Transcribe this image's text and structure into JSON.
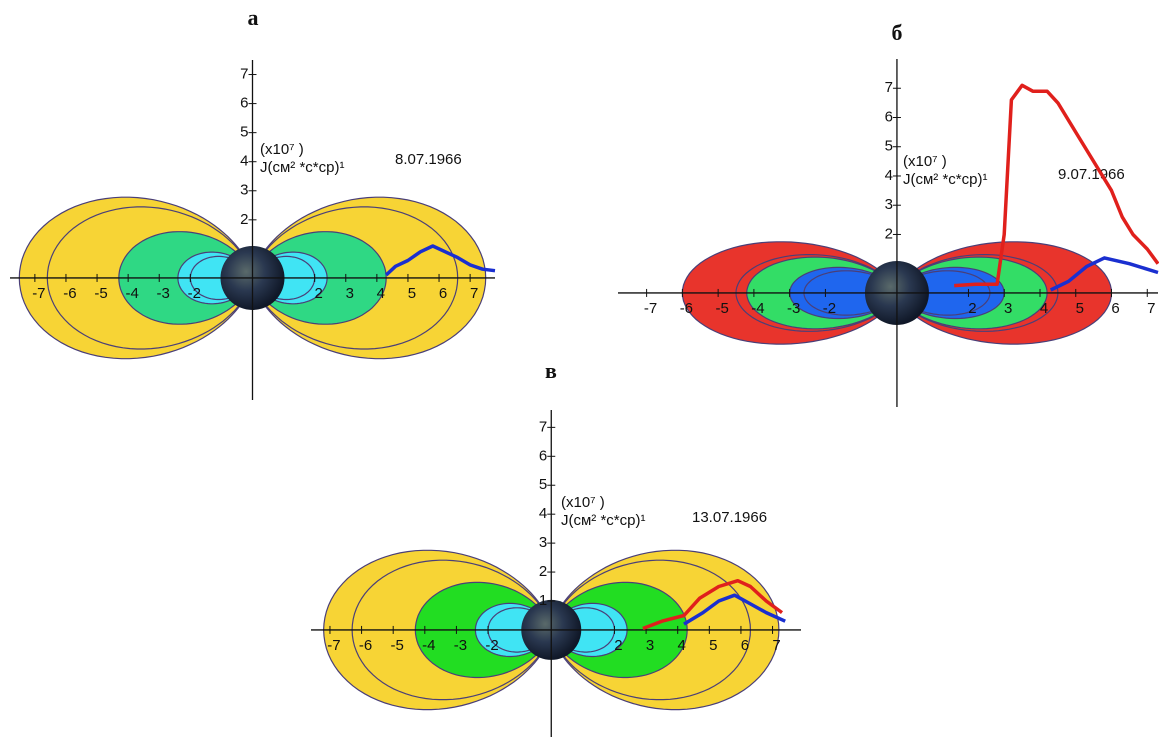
{
  "chart_data": [
    {
      "type": "line",
      "title": "а",
      "annotation": "8.07.1966",
      "y_label": [
        "(x10⁷ )",
        "J(см² *с*ср)¹"
      ],
      "xlim": [
        -7.8,
        7.8
      ],
      "ylim": [
        -4.2,
        7.5
      ],
      "xticks": [
        -7,
        -6,
        -5,
        -4,
        -3,
        -2,
        2,
        3,
        4,
        5,
        6,
        7
      ],
      "yticks": [
        2,
        3,
        4,
        5,
        6,
        7
      ],
      "series": [
        {
          "color": "#1a2fd0",
          "x": [
            4.3,
            4.6,
            5.0,
            5.4,
            5.8,
            6.2,
            6.6,
            7.0,
            7.4,
            7.8
          ],
          "values": [
            0.1,
            0.4,
            0.6,
            0.9,
            1.1,
            0.9,
            0.7,
            0.45,
            0.3,
            0.25
          ]
        }
      ]
    },
    {
      "type": "line",
      "title": "б",
      "annotation": "9.07.1966",
      "y_label": [
        "(x10⁷ )",
        "J(см² *с*ср)¹"
      ],
      "xlim": [
        -7.8,
        7.3
      ],
      "ylim": [
        -3.9,
        8
      ],
      "xticks": [
        -7,
        -6,
        -5,
        -4,
        -3,
        -2,
        2,
        3,
        4,
        5,
        6,
        7
      ],
      "yticks": [
        2,
        3,
        4,
        5,
        6,
        7
      ],
      "series": [
        {
          "color": "#e0201c",
          "x": [
            1.6,
            2.2,
            2.8,
            3.0,
            3.2,
            3.5,
            3.8,
            4.2,
            4.5,
            5.0,
            5.5,
            6.0,
            6.3,
            6.6,
            7.0,
            7.3
          ],
          "values": [
            0.25,
            0.3,
            0.3,
            2.0,
            6.6,
            7.1,
            6.9,
            6.9,
            6.5,
            5.5,
            4.5,
            3.5,
            2.6,
            2.0,
            1.5,
            1.0
          ]
        },
        {
          "color": "#1a2fd0",
          "x": [
            4.3,
            4.8,
            5.3,
            5.8,
            6.5,
            7.3
          ],
          "values": [
            0.1,
            0.4,
            0.9,
            1.2,
            1.0,
            0.7
          ]
        }
      ]
    },
    {
      "type": "line",
      "title": "в",
      "annotation": "13.07.1966",
      "y_label": [
        "(x10⁷ )",
        "J(см² *с*ср)¹"
      ],
      "xlim": [
        -7.6,
        7.9
      ],
      "ylim": [
        -3.7,
        7.6
      ],
      "xticks": [
        -7,
        -6,
        -5,
        -4,
        -3,
        -2,
        2,
        3,
        4,
        5,
        6,
        7
      ],
      "yticks": [
        1,
        2,
        3,
        4,
        5,
        6,
        7
      ],
      "series": [
        {
          "color": "#e0201c",
          "x": [
            2.9,
            3.5,
            4.2,
            4.7,
            5.3,
            5.9,
            6.3,
            6.8,
            7.3
          ],
          "values": [
            0.05,
            0.3,
            0.5,
            1.1,
            1.5,
            1.7,
            1.5,
            1.0,
            0.6
          ]
        },
        {
          "color": "#1a2fd0",
          "x": [
            4.2,
            4.8,
            5.3,
            5.8,
            6.3,
            6.8,
            7.4
          ],
          "values": [
            0.2,
            0.6,
            1.0,
            1.2,
            0.9,
            0.6,
            0.3
          ]
        }
      ]
    }
  ]
}
